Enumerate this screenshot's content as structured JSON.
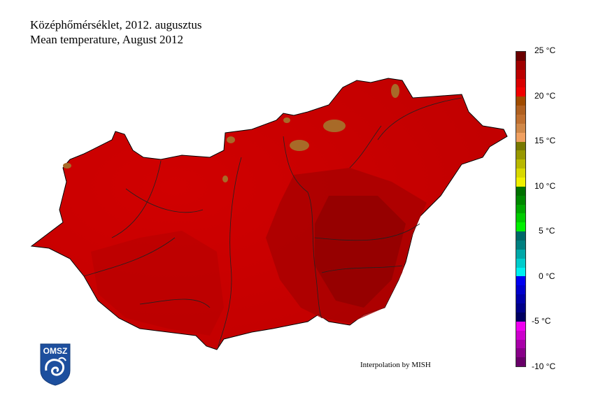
{
  "title_hu": "Középhőmérséklet, 2012. augusztus",
  "title_en": "Mean temperature, August 2012",
  "credit": "Interpolation by MISH",
  "logo_text": "OMSZ",
  "legend": {
    "unit": "°C",
    "range": [
      -10,
      25
    ],
    "step": 1,
    "labels": [
      "25 °C",
      "20 °C",
      "15 °C",
      "10 °C",
      "5 °C",
      "0 °C",
      "-5 °C",
      "-10 °C"
    ],
    "colors_top_to_bottom": [
      "#6a0000",
      "#a00000",
      "#bb0000",
      "#d80000",
      "#f00000",
      "#a04c00",
      "#b06020",
      "#c07030",
      "#d08848",
      "#f0a060",
      "#787800",
      "#989800",
      "#b8b800",
      "#d8d800",
      "#f0f000",
      "#007000",
      "#008800",
      "#00a800",
      "#00cc00",
      "#00f000",
      "#006868",
      "#008080",
      "#00a8a8",
      "#00cccc",
      "#00f0f0",
      "#0000f0",
      "#0000cc",
      "#0000a8",
      "#000088",
      "#000060",
      "#f000f0",
      "#cc00cc",
      "#a800a8",
      "#880088",
      "#680068"
    ]
  },
  "map": {
    "region": "Hungary",
    "dominant_colors": [
      "#cc0000",
      "#b00000",
      "#990000"
    ],
    "highland_color": "#a06020"
  }
}
